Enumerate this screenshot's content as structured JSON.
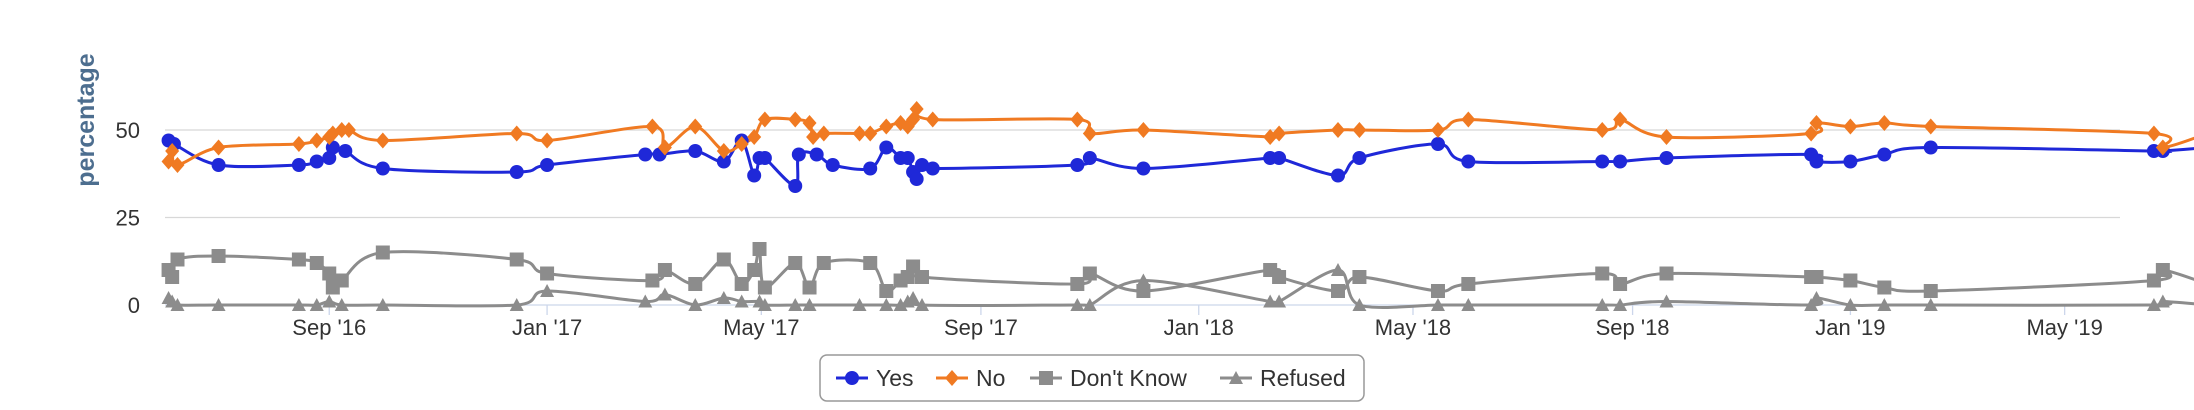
{
  "chart_data": {
    "type": "line",
    "ylabel": "percentage",
    "ylim": [
      0,
      60
    ],
    "y_ticks": [
      0,
      25,
      50
    ],
    "x_ticks": [
      "Sep '16",
      "Jan '17",
      "May '17",
      "Sep '17",
      "Jan '18",
      "May '18",
      "Sep '18",
      "Jan '19",
      "May '19"
    ],
    "xlim": [
      "2016-06-01",
      "2019-06-01"
    ],
    "grid": true,
    "legend_position": "bottom-center",
    "series": [
      {
        "name": "Yes",
        "color": "#1f28d8",
        "marker": "circle",
        "points": [
          [
            "2016-06-03",
            47
          ],
          [
            "2016-06-06",
            46
          ],
          [
            "2016-07-01",
            40
          ],
          [
            "2016-08-15",
            40
          ],
          [
            "2016-08-25",
            41
          ],
          [
            "2016-09-01",
            42
          ],
          [
            "2016-09-03",
            45
          ],
          [
            "2016-09-10",
            44
          ],
          [
            "2016-10-01",
            39
          ],
          [
            "2016-12-15",
            38
          ],
          [
            "2017-01-01",
            40
          ],
          [
            "2017-02-25",
            43
          ],
          [
            "2017-03-05",
            43
          ],
          [
            "2017-03-25",
            44
          ],
          [
            "2017-04-10",
            41
          ],
          [
            "2017-04-20",
            47
          ],
          [
            "2017-04-27",
            37
          ],
          [
            "2017-04-30",
            42
          ],
          [
            "2017-05-03",
            42
          ],
          [
            "2017-05-20",
            34
          ],
          [
            "2017-05-22",
            43
          ],
          [
            "2017-06-01",
            43
          ],
          [
            "2017-06-10",
            40
          ],
          [
            "2017-07-01",
            39
          ],
          [
            "2017-07-10",
            45
          ],
          [
            "2017-07-18",
            42
          ],
          [
            "2017-07-22",
            42
          ],
          [
            "2017-07-25",
            38
          ],
          [
            "2017-07-27",
            36
          ],
          [
            "2017-07-30",
            40
          ],
          [
            "2017-08-05",
            39
          ],
          [
            "2017-10-25",
            40
          ],
          [
            "2017-11-01",
            42
          ],
          [
            "2017-12-01",
            39
          ],
          [
            "2018-02-10",
            42
          ],
          [
            "2018-02-15",
            42
          ],
          [
            "2018-03-20",
            37
          ],
          [
            "2018-04-01",
            42
          ],
          [
            "2018-05-15",
            46
          ],
          [
            "2018-06-01",
            41
          ],
          [
            "2018-08-15",
            41
          ],
          [
            "2018-08-25",
            41
          ],
          [
            "2018-09-20",
            42
          ],
          [
            "2018-12-10",
            43
          ],
          [
            "2018-12-13",
            41
          ],
          [
            "2019-01-01",
            41
          ],
          [
            "2019-01-20",
            43
          ],
          [
            "2019-02-15",
            45
          ],
          [
            "2019-06-20",
            44
          ],
          [
            "2019-06-25",
            44
          ],
          [
            "2019-07-20",
            45
          ]
        ]
      },
      {
        "name": "No",
        "color": "#f07a22",
        "marker": "diamond",
        "points": [
          [
            "2016-06-03",
            41
          ],
          [
            "2016-06-05",
            44
          ],
          [
            "2016-06-08",
            40
          ],
          [
            "2016-07-01",
            45
          ],
          [
            "2016-08-15",
            46
          ],
          [
            "2016-08-25",
            47
          ],
          [
            "2016-09-01",
            48
          ],
          [
            "2016-09-03",
            49
          ],
          [
            "2016-09-08",
            50
          ],
          [
            "2016-09-12",
            50
          ],
          [
            "2016-10-01",
            47
          ],
          [
            "2016-12-15",
            49
          ],
          [
            "2017-01-01",
            47
          ],
          [
            "2017-03-01",
            51
          ],
          [
            "2017-03-08",
            45
          ],
          [
            "2017-03-25",
            51
          ],
          [
            "2017-04-10",
            44
          ],
          [
            "2017-04-20",
            46
          ],
          [
            "2017-04-27",
            48
          ],
          [
            "2017-05-03",
            53
          ],
          [
            "2017-05-20",
            53
          ],
          [
            "2017-05-28",
            52
          ],
          [
            "2017-05-30",
            48
          ],
          [
            "2017-06-05",
            49
          ],
          [
            "2017-06-25",
            49
          ],
          [
            "2017-07-01",
            49
          ],
          [
            "2017-07-10",
            51
          ],
          [
            "2017-07-18",
            52
          ],
          [
            "2017-07-22",
            51
          ],
          [
            "2017-07-25",
            53
          ],
          [
            "2017-07-27",
            56
          ],
          [
            "2017-08-05",
            53
          ],
          [
            "2017-10-25",
            53
          ],
          [
            "2017-11-01",
            49
          ],
          [
            "2017-12-01",
            50
          ],
          [
            "2018-02-10",
            48
          ],
          [
            "2018-02-15",
            49
          ],
          [
            "2018-03-20",
            50
          ],
          [
            "2018-04-01",
            50
          ],
          [
            "2018-05-15",
            50
          ],
          [
            "2018-06-01",
            53
          ],
          [
            "2018-08-15",
            50
          ],
          [
            "2018-08-25",
            53
          ],
          [
            "2018-09-20",
            48
          ],
          [
            "2018-12-10",
            49
          ],
          [
            "2018-12-13",
            52
          ],
          [
            "2019-01-01",
            51
          ],
          [
            "2019-01-20",
            52
          ],
          [
            "2019-02-15",
            51
          ],
          [
            "2019-06-20",
            49
          ],
          [
            "2019-06-25",
            45
          ],
          [
            "2019-07-20",
            49
          ]
        ]
      },
      {
        "name": "Don't Know",
        "color": "#8c8c8c",
        "marker": "square",
        "points": [
          [
            "2016-06-03",
            10
          ],
          [
            "2016-06-05",
            8
          ],
          [
            "2016-06-08",
            13
          ],
          [
            "2016-07-01",
            14
          ],
          [
            "2016-08-15",
            13
          ],
          [
            "2016-08-25",
            12
          ],
          [
            "2016-09-01",
            9
          ],
          [
            "2016-09-03",
            5
          ],
          [
            "2016-09-08",
            7
          ],
          [
            "2016-10-01",
            15
          ],
          [
            "2016-12-15",
            13
          ],
          [
            "2017-01-01",
            9
          ],
          [
            "2017-03-01",
            7
          ],
          [
            "2017-03-08",
            10
          ],
          [
            "2017-03-25",
            6
          ],
          [
            "2017-04-10",
            13
          ],
          [
            "2017-04-20",
            6
          ],
          [
            "2017-04-27",
            10
          ],
          [
            "2017-04-30",
            16
          ],
          [
            "2017-05-03",
            5
          ],
          [
            "2017-05-20",
            12
          ],
          [
            "2017-05-28",
            5
          ],
          [
            "2017-06-05",
            12
          ],
          [
            "2017-07-01",
            12
          ],
          [
            "2017-07-10",
            4
          ],
          [
            "2017-07-18",
            7
          ],
          [
            "2017-07-22",
            8
          ],
          [
            "2017-07-25",
            11
          ],
          [
            "2017-07-30",
            8
          ],
          [
            "2017-10-25",
            6
          ],
          [
            "2017-11-01",
            9
          ],
          [
            "2017-12-01",
            4
          ],
          [
            "2018-02-10",
            10
          ],
          [
            "2018-02-15",
            8
          ],
          [
            "2018-03-20",
            4
          ],
          [
            "2018-04-01",
            8
          ],
          [
            "2018-05-15",
            4
          ],
          [
            "2018-06-01",
            6
          ],
          [
            "2018-08-15",
            9
          ],
          [
            "2018-08-25",
            6
          ],
          [
            "2018-09-20",
            9
          ],
          [
            "2018-12-10",
            8
          ],
          [
            "2018-12-13",
            8
          ],
          [
            "2019-01-01",
            7
          ],
          [
            "2019-01-20",
            5
          ],
          [
            "2019-02-15",
            4
          ],
          [
            "2019-06-20",
            7
          ],
          [
            "2019-06-25",
            10
          ],
          [
            "2019-07-20",
            6
          ]
        ]
      },
      {
        "name": "Refused",
        "color": "#8c8c8c",
        "marker": "triangle",
        "points": [
          [
            "2016-06-03",
            2
          ],
          [
            "2016-06-05",
            1
          ],
          [
            "2016-06-08",
            0
          ],
          [
            "2016-07-01",
            0
          ],
          [
            "2016-08-15",
            0
          ],
          [
            "2016-08-25",
            0
          ],
          [
            "2016-09-01",
            1
          ],
          [
            "2016-09-08",
            0
          ],
          [
            "2016-10-01",
            0
          ],
          [
            "2016-12-15",
            0
          ],
          [
            "2017-01-01",
            4
          ],
          [
            "2017-02-25",
            1
          ],
          [
            "2017-03-08",
            3
          ],
          [
            "2017-03-25",
            0
          ],
          [
            "2017-04-10",
            2
          ],
          [
            "2017-04-20",
            1
          ],
          [
            "2017-04-30",
            1
          ],
          [
            "2017-05-03",
            0
          ],
          [
            "2017-05-20",
            0
          ],
          [
            "2017-05-28",
            0
          ],
          [
            "2017-06-25",
            0
          ],
          [
            "2017-07-10",
            0
          ],
          [
            "2017-07-18",
            0
          ],
          [
            "2017-07-22",
            1
          ],
          [
            "2017-07-25",
            2
          ],
          [
            "2017-07-30",
            0
          ],
          [
            "2017-10-25",
            0
          ],
          [
            "2017-11-01",
            0
          ],
          [
            "2017-12-01",
            7
          ],
          [
            "2018-02-10",
            1
          ],
          [
            "2018-02-15",
            1
          ],
          [
            "2018-03-20",
            10
          ],
          [
            "2018-04-01",
            0
          ],
          [
            "2018-05-15",
            0
          ],
          [
            "2018-06-01",
            0
          ],
          [
            "2018-08-15",
            0
          ],
          [
            "2018-08-25",
            0
          ],
          [
            "2018-09-20",
            1
          ],
          [
            "2018-12-10",
            0
          ],
          [
            "2018-12-13",
            2
          ],
          [
            "2019-01-01",
            0
          ],
          [
            "2019-01-20",
            0
          ],
          [
            "2019-02-15",
            0
          ],
          [
            "2019-06-20",
            0
          ],
          [
            "2019-06-25",
            1
          ],
          [
            "2019-07-20",
            0
          ]
        ]
      }
    ]
  }
}
